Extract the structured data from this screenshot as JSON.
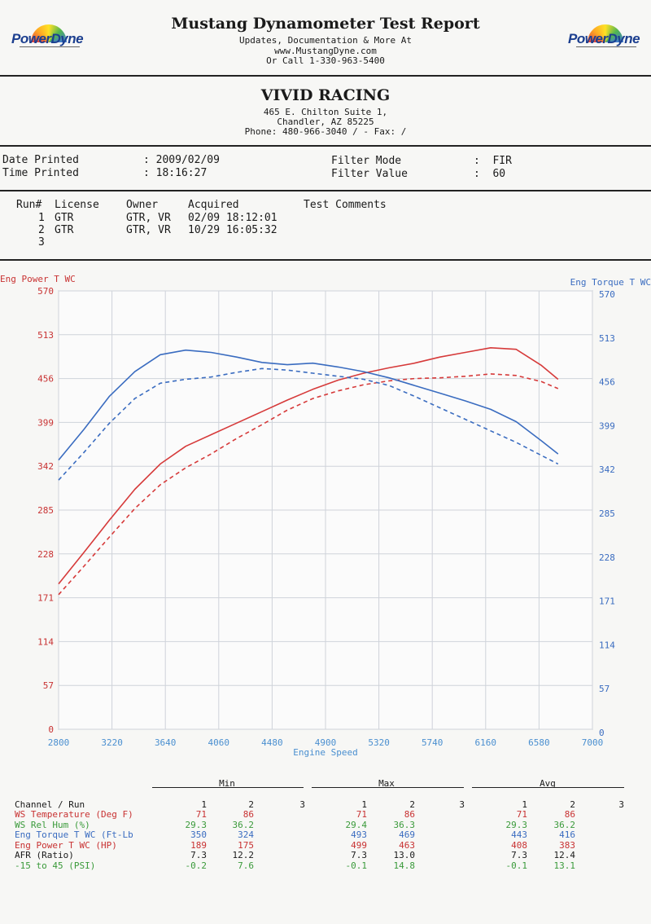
{
  "header": {
    "title": "Mustang Dynamometer Test Report",
    "line1": "Updates, Documentation & More At",
    "line2": "www.MustangDyne.com",
    "line3": "Or Call 1-330-963-5400",
    "logo_left": "PowerDyne",
    "logo_right": "PowerDyne"
  },
  "business": {
    "name": "VIVID RACING",
    "address1": "465 E. Chilton Suite 1,",
    "address2": "Chandler, AZ  85225",
    "phone": "Phone: 480-966-3040 /  - Fax:  /"
  },
  "info": {
    "date_label": "Date Printed",
    "date_value": ": 2009/02/09",
    "time_label": "Time Printed",
    "time_value": ": 18:16:27",
    "filter_mode_label": "Filter Mode",
    "filter_mode_value": ":  FIR",
    "filter_value_label": "Filter Value",
    "filter_value_value": ":  60"
  },
  "runs": {
    "headers": [
      "Run#",
      "License",
      "Owner",
      "Acquired",
      "Test Comments"
    ],
    "rows": [
      {
        "run": "1",
        "license": "GTR",
        "owner": "GTR, VR",
        "acquired": "02/09 18:12:01"
      },
      {
        "run": "2",
        "license": "GTR",
        "owner": "GTR, VR",
        "acquired": "10/29 16:05:32"
      },
      {
        "run": "3",
        "license": "",
        "owner": "",
        "acquired": ""
      }
    ]
  },
  "chart_data": {
    "type": "line",
    "left_axis_label": "Eng Power T WC",
    "right_axis_label": "Eng Torque T WC",
    "xlabel": "Engine Speed",
    "x_ticks": [
      2800,
      3220,
      3640,
      4060,
      4480,
      4900,
      5320,
      5740,
      6160,
      6580,
      7000
    ],
    "xlim": [
      2800,
      7000
    ],
    "ylim": [
      0,
      570
    ],
    "y_ticks": [
      0,
      57,
      114,
      171,
      228,
      285,
      342,
      399,
      456,
      513,
      570
    ],
    "grid": true,
    "colors": {
      "power": "#d63a3a",
      "torque": "#3a6cc0",
      "axis_text_left": "#c83232",
      "axis_text_right": "#3a6cc0",
      "x_text": "#4a8fd0"
    },
    "series": [
      {
        "id": "power_run1",
        "axis": "left",
        "style": "solid",
        "color": "#d63a3a",
        "x": [
          2800,
          3000,
          3200,
          3400,
          3600,
          3800,
          4000,
          4200,
          4400,
          4600,
          4800,
          5000,
          5200,
          5400,
          5600,
          5800,
          6000,
          6200,
          6400,
          6600,
          6730
        ],
        "y": [
          189,
          230,
          272,
          312,
          345,
          368,
          383,
          398,
          413,
          428,
          442,
          454,
          463,
          470,
          476,
          484,
          490,
          496,
          494,
          473,
          455
        ]
      },
      {
        "id": "power_run2",
        "axis": "left",
        "style": "dashed",
        "color": "#d63a3a",
        "x": [
          2800,
          3000,
          3200,
          3400,
          3600,
          3800,
          4000,
          4200,
          4400,
          4600,
          4800,
          5000,
          5200,
          5400,
          5600,
          5800,
          6000,
          6200,
          6400,
          6600,
          6730
        ],
        "y": [
          175,
          212,
          250,
          287,
          318,
          340,
          358,
          378,
          396,
          415,
          430,
          440,
          448,
          453,
          456,
          457,
          459,
          462,
          460,
          452,
          443
        ]
      },
      {
        "id": "torque_run1",
        "axis": "right",
        "style": "solid",
        "color": "#3a6cc0",
        "x": [
          2800,
          3000,
          3200,
          3400,
          3600,
          3800,
          4000,
          4200,
          4400,
          4600,
          4800,
          5000,
          5200,
          5400,
          5600,
          5800,
          6000,
          6200,
          6400,
          6600,
          6730
        ],
        "y": [
          350,
          390,
          433,
          465,
          487,
          493,
          490,
          484,
          477,
          474,
          476,
          471,
          465,
          457,
          447,
          437,
          427,
          416,
          400,
          375,
          358
        ]
      },
      {
        "id": "torque_run2",
        "axis": "right",
        "style": "dashed",
        "color": "#3a6cc0",
        "x": [
          2800,
          3000,
          3200,
          3400,
          3600,
          3800,
          4000,
          4200,
          4400,
          4600,
          4800,
          5000,
          5200,
          5400,
          5600,
          5800,
          6000,
          6200,
          6400,
          6600,
          6730
        ],
        "y": [
          324,
          360,
          398,
          430,
          450,
          455,
          458,
          464,
          469,
          467,
          463,
          459,
          455,
          447,
          433,
          418,
          403,
          388,
          373,
          356,
          345
        ]
      }
    ]
  },
  "stats": {
    "groups": [
      "Min",
      "Max",
      "Avg"
    ],
    "runs_header": [
      "1",
      "2",
      "3"
    ],
    "channel_header": "Channel / Run",
    "rows": [
      {
        "label": "WS Temperature (Deg F)",
        "color": "#c83232",
        "min": [
          "71",
          "86"
        ],
        "max": [
          "71",
          "86"
        ],
        "avg": [
          "71",
          "86"
        ]
      },
      {
        "label": "WS Rel Hum (%)",
        "color": "#3a9a3a",
        "min": [
          "29.3",
          "36.2"
        ],
        "max": [
          "29.4",
          "36.3"
        ],
        "avg": [
          "29.3",
          "36.2"
        ]
      },
      {
        "label": "Eng Torque T WC (Ft-Lb",
        "color": "#3a6cc0",
        "min": [
          "350",
          "324"
        ],
        "max": [
          "493",
          "469"
        ],
        "avg": [
          "443",
          "416"
        ]
      },
      {
        "label": "Eng Power T WC (HP)",
        "color": "#c83232",
        "min": [
          "189",
          "175"
        ],
        "max": [
          "499",
          "463"
        ],
        "avg": [
          "408",
          "383"
        ]
      },
      {
        "label": "AFR (Ratio)",
        "color": "#1a1a1a",
        "min": [
          "7.3",
          "12.2"
        ],
        "max": [
          "7.3",
          "13.0"
        ],
        "avg": [
          "7.3",
          "12.4"
        ]
      },
      {
        "label": "-15 to 45 (PSI)",
        "color": "#3a9a3a",
        "min": [
          "-0.2",
          "7.6"
        ],
        "max": [
          "-0.1",
          "14.8"
        ],
        "avg": [
          "-0.1",
          "13.1"
        ]
      }
    ]
  }
}
